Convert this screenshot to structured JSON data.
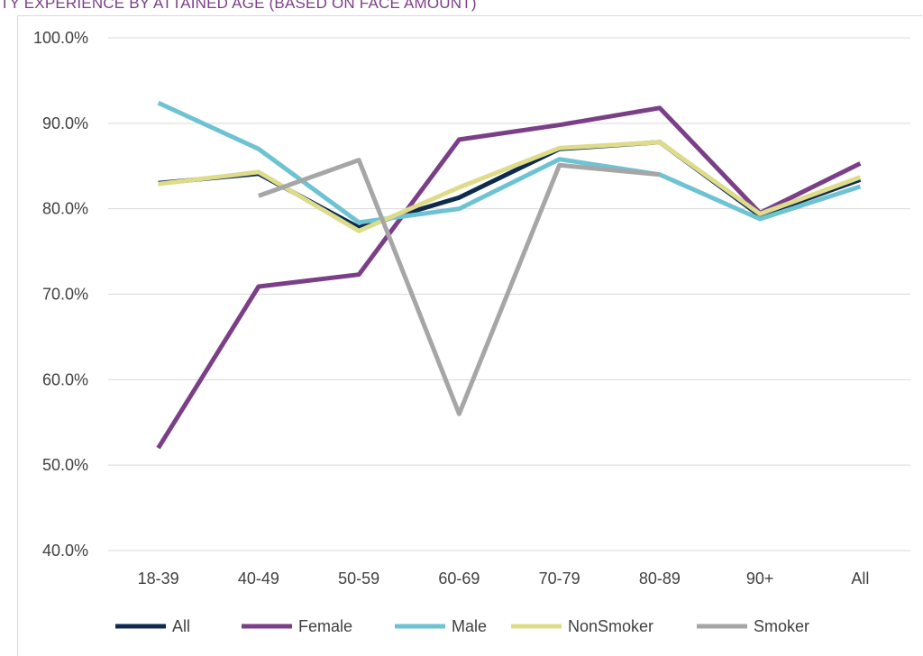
{
  "chart_data": {
    "type": "line",
    "title": "TY EXPERIENCE BY ATTAINED AGE (BASED ON FACE AMOUNT)",
    "categories": [
      "18-39",
      "40-49",
      "50-59",
      "60-69",
      "70-79",
      "80-89",
      "90+",
      "All"
    ],
    "y_tick_labels": [
      "40.0%",
      "50.0%",
      "60.0%",
      "70.0%",
      "80.0%",
      "90.0%",
      "100.0%"
    ],
    "ylim": [
      40,
      100
    ],
    "grid": true,
    "legend_position": "bottom",
    "series": [
      {
        "name": "All",
        "color": "#0e2a4f",
        "values": [
          83.0,
          84.1,
          77.8,
          81.3,
          87.0,
          87.8,
          79.2,
          83.4
        ]
      },
      {
        "name": "Female",
        "color": "#7b3f87",
        "values": [
          52.0,
          70.9,
          72.3,
          88.1,
          89.8,
          91.8,
          79.5,
          85.3
        ]
      },
      {
        "name": "Male",
        "color": "#6ec3d3",
        "values": [
          92.4,
          87.0,
          78.4,
          80.0,
          85.8,
          84.0,
          78.8,
          82.6
        ]
      },
      {
        "name": "NonSmoker",
        "color": "#dedc8a",
        "values": [
          82.9,
          84.3,
          77.4,
          82.5,
          87.1,
          87.8,
          79.4,
          83.7
        ]
      },
      {
        "name": "Smoker",
        "color": "#a6a6a6",
        "values": [
          null,
          81.5,
          85.7,
          56.0,
          85.1,
          84.0,
          null,
          null
        ]
      }
    ]
  }
}
